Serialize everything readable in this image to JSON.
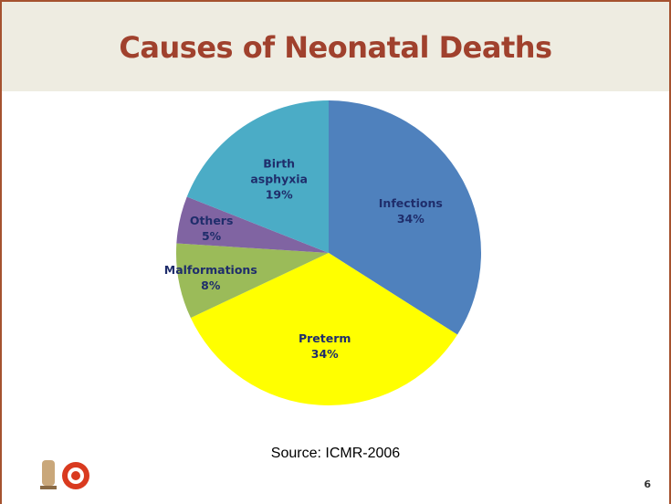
{
  "chart_data": {
    "type": "pie",
    "title": "Causes of Neonatal Deaths",
    "categories": [
      "Infections",
      "Preterm",
      "Malformations",
      "Others",
      "Birth asphyxia"
    ],
    "values": [
      34,
      34,
      8,
      5,
      19
    ],
    "value_labels": [
      "34%",
      "34%",
      "8%",
      "5%",
      "19%"
    ],
    "colors": [
      "#4f81bd",
      "#ffff00",
      "#9bbb59",
      "#8064a2",
      "#4bacc6"
    ]
  },
  "source": "Source: ICMR-2006",
  "page_number": "6"
}
